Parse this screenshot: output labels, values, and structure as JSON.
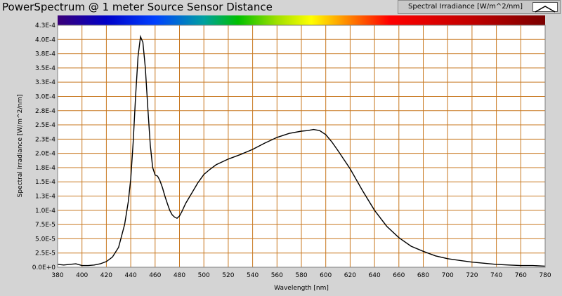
{
  "window": {
    "title": "PowerSpectrum @ 1 meter Source Sensor Distance"
  },
  "legend": {
    "label": "Spectral Irradiance [W/m^2/nm]"
  },
  "colors": {
    "background": "#d4d4d4",
    "plot_area": "#ffffff",
    "grid": "#c87820",
    "series": "#000000"
  },
  "chart_data": {
    "type": "line",
    "title": "PowerSpectrum @ 1 meter Source Sensor Distance",
    "xlabel": "Wavelength [nm]",
    "ylabel": "Spectral Irradiance [W/m^2/nm]",
    "xlim": [
      380,
      780
    ],
    "ylim": [
      0,
      0.000425
    ],
    "grid": true,
    "legend_position": "top-right",
    "x_ticks": [
      380,
      400,
      420,
      440,
      460,
      480,
      500,
      520,
      540,
      560,
      580,
      600,
      620,
      640,
      660,
      680,
      700,
      720,
      740,
      760,
      780
    ],
    "y_ticks": [
      {
        "value": 0,
        "label": "0.0E+0"
      },
      {
        "value": 2.5e-05,
        "label": "2.5E-5"
      },
      {
        "value": 5e-05,
        "label": "5.0E-5"
      },
      {
        "value": 7.5e-05,
        "label": "7.5E-5"
      },
      {
        "value": 0.0001,
        "label": "1.0E-4"
      },
      {
        "value": 0.000125,
        "label": "1.3E-4"
      },
      {
        "value": 0.00015,
        "label": "1.5E-4"
      },
      {
        "value": 0.000175,
        "label": "1.8E-4"
      },
      {
        "value": 0.0002,
        "label": "2.0E-4"
      },
      {
        "value": 0.000225,
        "label": "2.3E-4"
      },
      {
        "value": 0.00025,
        "label": "2.5E-4"
      },
      {
        "value": 0.000275,
        "label": "2.8E-4"
      },
      {
        "value": 0.0003,
        "label": "3.0E-4"
      },
      {
        "value": 0.000325,
        "label": "3.3E-4"
      },
      {
        "value": 0.00035,
        "label": "3.5E-4"
      },
      {
        "value": 0.000375,
        "label": "3.8E-4"
      },
      {
        "value": 0.0004,
        "label": "4.0E-4"
      },
      {
        "value": 0.000425,
        "label": "4.3E-4"
      }
    ],
    "series": [
      {
        "x": [
          380,
          385,
          390,
          395,
          400,
          405,
          410,
          415,
          420,
          425,
          430,
          435,
          438,
          440,
          442,
          444,
          446,
          448,
          450,
          452,
          454,
          456,
          458,
          460,
          462,
          464,
          466,
          468,
          470,
          472,
          474,
          476,
          478,
          480,
          482,
          485,
          490,
          495,
          500,
          505,
          510,
          520,
          530,
          540,
          550,
          560,
          570,
          580,
          585,
          590,
          595,
          600,
          605,
          610,
          620,
          630,
          640,
          650,
          660,
          670,
          680,
          690,
          700,
          710,
          720,
          730,
          740,
          750,
          760,
          770,
          780
        ],
        "y": [
          5e-06,
          4e-06,
          5e-06,
          6e-06,
          3e-06,
          3e-06,
          4e-06,
          6e-06,
          1e-05,
          1.8e-05,
          3.5e-05,
          7.5e-05,
          0.000115,
          0.000155,
          0.00022,
          0.0003,
          0.00037,
          0.000405,
          0.000395,
          0.00035,
          0.00028,
          0.000215,
          0.000175,
          0.000162,
          0.00016,
          0.000152,
          0.00014,
          0.000125,
          0.000112,
          0.0001,
          9.2e-05,
          8.8e-05,
          8.6e-05,
          9e-05,
          9.8e-05,
          0.000112,
          0.00013,
          0.000148,
          0.000163,
          0.000172,
          0.00018,
          0.00019,
          0.000198,
          0.000207,
          0.000218,
          0.000228,
          0.000235,
          0.000239,
          0.00024,
          0.000242,
          0.00024,
          0.000233,
          0.00022,
          0.000205,
          0.000173,
          0.000135,
          0.0001,
          7.2e-05,
          5.2e-05,
          3.7e-05,
          2.8e-05,
          2e-05,
          1.5e-05,
          1.2e-05,
          9e-06,
          7e-06,
          5e-06,
          4e-06,
          3e-06,
          3e-06,
          2e-06
        ]
      }
    ]
  }
}
